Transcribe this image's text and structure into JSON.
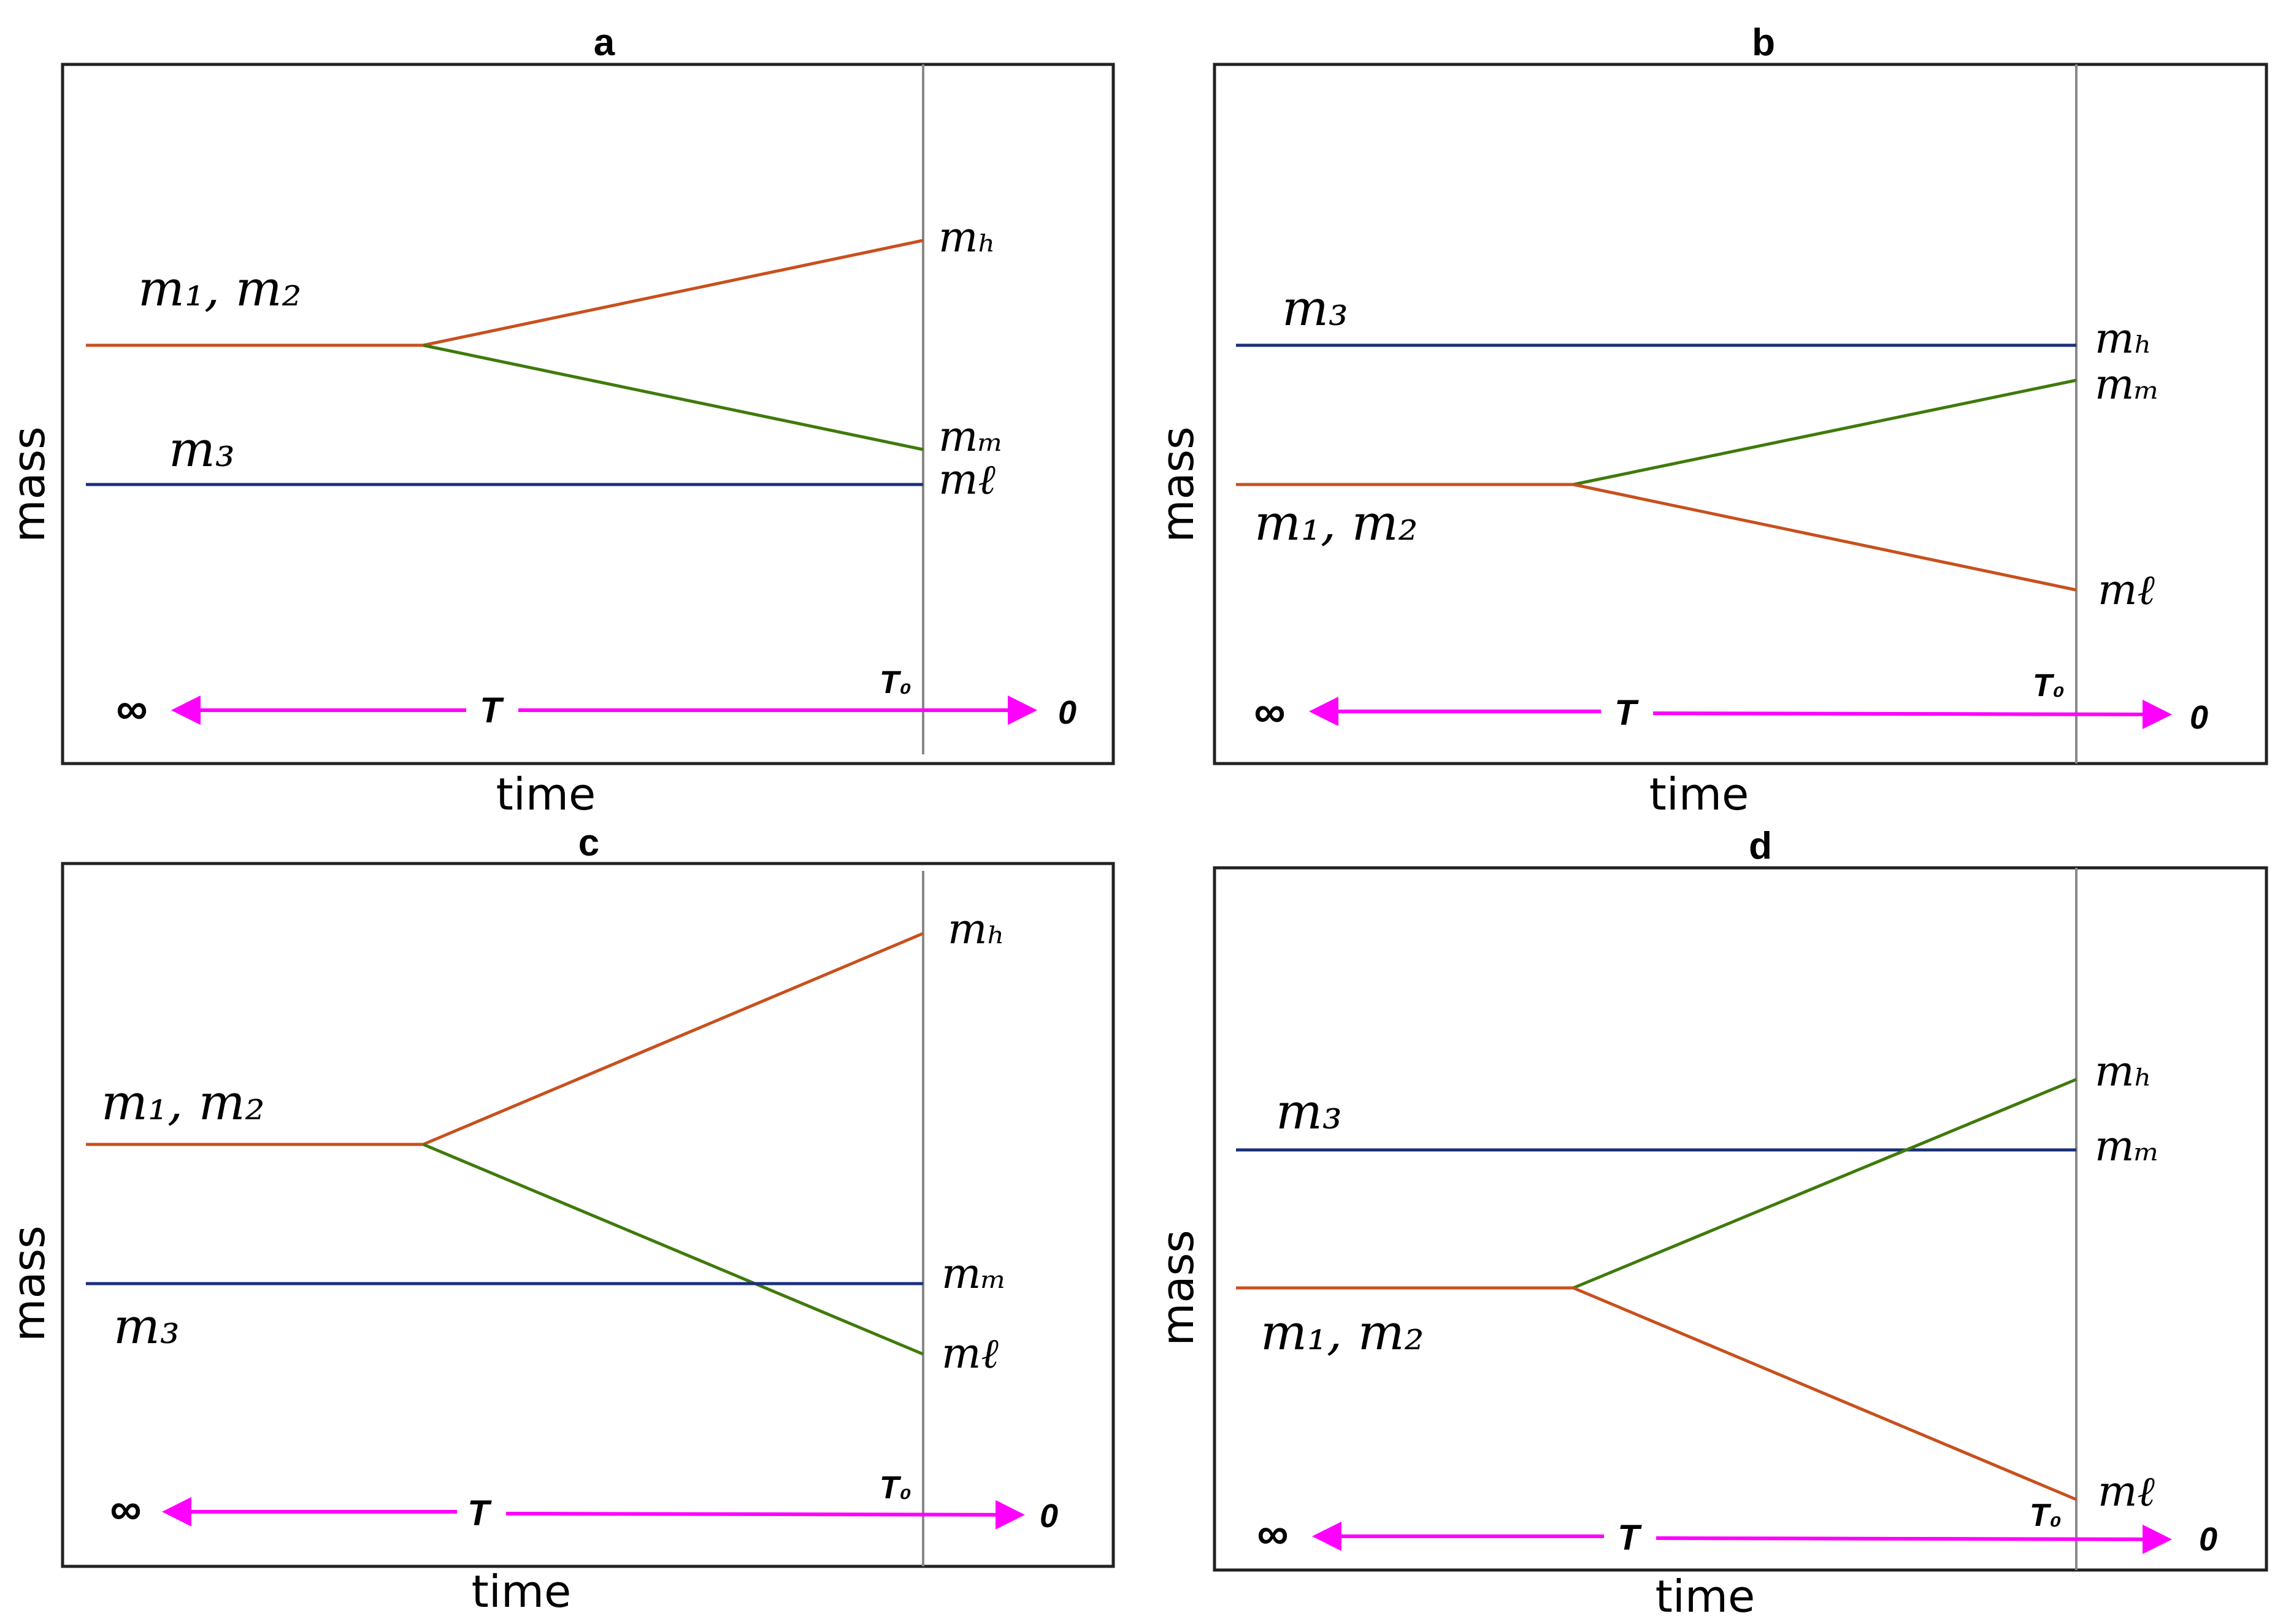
{
  "colors": {
    "magenta": "#ff00ff",
    "orange": "#c8501e",
    "green": "#3f7a0c",
    "blue": "#1a2f7a",
    "frame": "#222222",
    "today_line": "#888888"
  },
  "common": {
    "y_axis_label": "mass",
    "x_axis_label": "time",
    "infinity": "∞",
    "T_label": "T",
    "T0_label": "T₀",
    "zero_label": "0"
  },
  "panels": [
    {
      "id": "a",
      "title": "a",
      "group_label": "m₁, m₂",
      "single_label": "m₃",
      "m_h": "mₕ",
      "m_m": "mₘ",
      "m_l": "mℓ"
    },
    {
      "id": "b",
      "title": "b",
      "group_label": "m₁, m₂",
      "single_label": "m₃",
      "m_h": "mₕ",
      "m_m": "mₘ",
      "m_l": "mℓ"
    },
    {
      "id": "c",
      "title": "c",
      "group_label": "m₁, m₂",
      "single_label": "m₃",
      "m_h": "mₕ",
      "m_m": "mₘ",
      "m_l": "mℓ"
    },
    {
      "id": "d",
      "title": "d",
      "group_label": "m₁, m₂",
      "single_label": "m₃",
      "m_h": "mₕ",
      "m_m": "mₘ",
      "m_l": "mℓ"
    }
  ]
}
